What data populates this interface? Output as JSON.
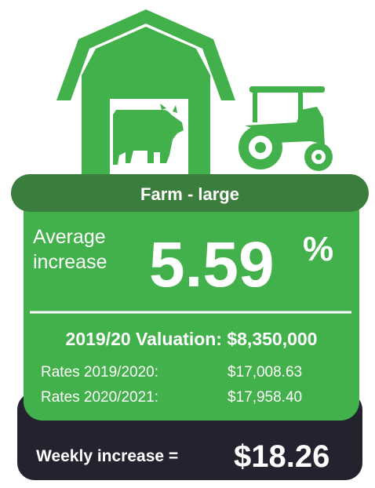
{
  "title": "Farm - large",
  "average": {
    "label_line1": "Average",
    "label_line2": "increase",
    "value": "5.59",
    "unit": "%"
  },
  "valuation": "2019/20 Valuation: $8,350,000",
  "rates": [
    {
      "label": "Rates 2019/2020:",
      "value": "$17,008.63"
    },
    {
      "label": "Rates 2020/2021:",
      "value": "$17,958.40"
    }
  ],
  "weekly": {
    "label": "Weekly increase =",
    "value": "$18.26"
  }
}
